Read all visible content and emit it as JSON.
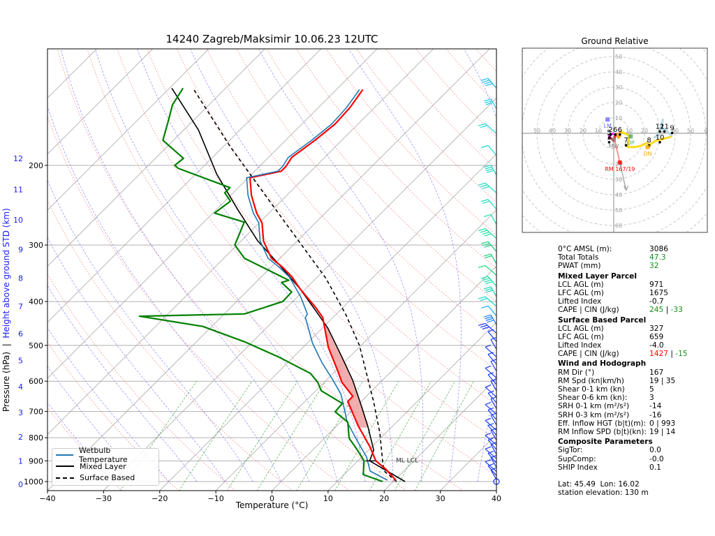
{
  "title": "14240 Zagreb/Maksimir 10.06.23 12UTC",
  "chart_data": [
    {
      "type": "line",
      "subtype": "skew-T log-P",
      "title": "14240 Zagreb/Maksimir 10.06.23 12UTC",
      "xlabel": "Temperature (°C)",
      "ylabel_left": "Pressure (hPa)",
      "ylabel_separator": "|",
      "ylabel_right": "Height above ground STD (km)",
      "xlim": [
        -40,
        40
      ],
      "ylim_hpa": [
        1050,
        110
      ],
      "x_ticks": [
        "−40",
        "−30",
        "−20",
        "−10",
        "0",
        "10",
        "20",
        "30",
        "40"
      ],
      "x_tick_values": [
        -40,
        -30,
        -20,
        -10,
        0,
        10,
        20,
        30,
        40
      ],
      "pressure_ticks": [
        "200",
        "300",
        "400",
        "500",
        "600",
        "700",
        "800",
        "900",
        "1000"
      ],
      "pressure_tick_values": [
        200,
        300,
        400,
        500,
        600,
        700,
        800,
        900,
        1000
      ],
      "height_ticks": [
        "0",
        "1",
        "2",
        "3",
        "4",
        "5",
        "6",
        "7",
        "8",
        "9",
        "10",
        "11",
        "12"
      ],
      "height_tick_pressures": [
        1015,
        900,
        797,
        703,
        617,
        540,
        471,
        410,
        355,
        307,
        264,
        226,
        193
      ],
      "grid": true,
      "legend": {
        "placement": "lower-left",
        "entries": [
          {
            "label": "Wetbulb Temperature",
            "color": "#1f77b4",
            "style": "solid"
          },
          {
            "label": "Mixed Layer",
            "color": "#000000",
            "style": "solid"
          },
          {
            "label": "Surface Based",
            "color": "#000000",
            "style": "dashed"
          }
        ]
      },
      "annotations": [
        {
          "text": "ML LCL",
          "p": 900,
          "t": 23
        }
      ],
      "series": [
        {
          "name": "Temperature",
          "color": "#ff0000",
          "points": [
            [
              20.2,
              993
            ],
            [
              16.4,
              938
            ],
            [
              13.2,
              900
            ],
            [
              9.6,
              837
            ],
            [
              3.8,
              753
            ],
            [
              -2.4,
              665
            ],
            [
              -2.4,
              648
            ],
            [
              -6.8,
              604
            ],
            [
              -9.9,
              566
            ],
            [
              -15.5,
              505
            ],
            [
              -21.8,
              434
            ],
            [
              -24.9,
              412
            ],
            [
              -30.8,
              376
            ],
            [
              -34.5,
              353
            ],
            [
              -37.9,
              336
            ],
            [
              -41.5,
              321
            ],
            [
              -46.0,
              294
            ],
            [
              -49.5,
              268
            ],
            [
              -52.2,
              255
            ],
            [
              -56.3,
              233
            ],
            [
              -59.7,
              213
            ],
            [
              -55.3,
              206
            ],
            [
              -55.3,
              201
            ],
            [
              -55.9,
              192
            ],
            [
              -54.8,
              176
            ],
            [
              -54.1,
              162
            ],
            [
              -54.4,
              149
            ],
            [
              -55.3,
              136
            ]
          ]
        },
        {
          "name": "Dewpoint",
          "color": "#008000",
          "points": [
            [
              18.1,
              1000
            ],
            [
              13.4,
              965
            ],
            [
              11.1,
              900
            ],
            [
              8.0,
              852
            ],
            [
              4.4,
              802
            ],
            [
              1.3,
              739
            ],
            [
              -2.8,
              701
            ],
            [
              -3.0,
              672
            ],
            [
              -9.0,
              630
            ],
            [
              -11.1,
              604
            ],
            [
              -14.0,
              577
            ],
            [
              -22.5,
              531
            ],
            [
              -31.4,
              491
            ],
            [
              -41.6,
              454
            ],
            [
              -54.7,
              431
            ],
            [
              -36.4,
              426
            ],
            [
              -31.8,
              400
            ],
            [
              -31.9,
              381
            ],
            [
              -35.4,
              363
            ],
            [
              -34.5,
              359
            ],
            [
              -46.3,
              321
            ],
            [
              -50.4,
              300
            ],
            [
              -52.8,
              267
            ],
            [
              -59.7,
              255
            ],
            [
              -59.0,
              240
            ],
            [
              -61.5,
              230
            ],
            [
              -61.5,
              224
            ],
            [
              -74.2,
              203
            ],
            [
              -75.3,
              200
            ],
            [
              -75.0,
              193
            ],
            [
              -81.9,
              176
            ],
            [
              -84.3,
              160
            ],
            [
              -86.5,
              147
            ],
            [
              -87.6,
              135
            ]
          ]
        },
        {
          "name": "Wetbulb Temperature",
          "color": "#1f77b4",
          "points": [
            [
              18.7,
              993
            ],
            [
              14.0,
              948
            ],
            [
              10.9,
              883
            ],
            [
              6.4,
              814
            ],
            [
              1.2,
              739
            ],
            [
              -1.8,
              689
            ],
            [
              -4.9,
              641
            ],
            [
              -8.8,
              597
            ],
            [
              -13.8,
              547
            ],
            [
              -19.0,
              495
            ],
            [
              -24.9,
              434
            ],
            [
              -25.2,
              426
            ],
            [
              -29.5,
              390
            ],
            [
              -35.0,
              353
            ],
            [
              -38.5,
              336
            ],
            [
              -42.1,
              321
            ],
            [
              -46.6,
              294
            ],
            [
              -50.1,
              268
            ],
            [
              -52.8,
              255
            ],
            [
              -56.9,
              233
            ],
            [
              -60.3,
              213
            ],
            [
              -55.9,
              206
            ],
            [
              -55.9,
              201
            ],
            [
              -56.5,
              192
            ],
            [
              -55.4,
              176
            ],
            [
              -54.7,
              162
            ],
            [
              -55.0,
              149
            ],
            [
              -55.9,
              136
            ]
          ]
        },
        {
          "name": "Mixed Layer",
          "color": "#000000",
          "style": "solid",
          "points": [
            [
              22.1,
              1000
            ],
            [
              12.1,
              900
            ],
            [
              10.9,
              852
            ],
            [
              5.5,
              753
            ],
            [
              0.6,
              677
            ],
            [
              -5.3,
              597
            ],
            [
              -11.5,
              529
            ],
            [
              -19.0,
              458
            ],
            [
              -24.3,
              419
            ],
            [
              -30.8,
              376
            ],
            [
              -38.9,
              332
            ],
            [
              -47.0,
              294
            ],
            [
              -56.3,
              250
            ],
            [
              -66.3,
              209
            ],
            [
              -77.4,
              167
            ],
            [
              -89.6,
              135
            ]
          ]
        },
        {
          "name": "Surface Based",
          "color": "#000000",
          "style": "dashed",
          "points": [
            [
              20.6,
              1000
            ],
            [
              16.5,
              948
            ],
            [
              14.4,
              900
            ],
            [
              8.9,
              780
            ],
            [
              2.2,
              665
            ],
            [
              -10.3,
              500
            ],
            [
              -18.4,
              426
            ],
            [
              -28.3,
              355
            ],
            [
              -38.9,
              298
            ],
            [
              -53.8,
              233
            ],
            [
              -68.7,
              182
            ],
            [
              -85.4,
              136
            ]
          ]
        }
      ],
      "wind_barbs": {
        "surface_calm_pressure": 1000,
        "levels_hpa": [
          990,
          970,
          950,
          930,
          910,
          890,
          870,
          850,
          830,
          810,
          790,
          770,
          750,
          730,
          710,
          690,
          670,
          650,
          630,
          610,
          590,
          570,
          550,
          530,
          510,
          490,
          470,
          450,
          430,
          410,
          390,
          370,
          350,
          330,
          310,
          290,
          270,
          250,
          230,
          210,
          190,
          170,
          150,
          135
        ],
        "colors": [
          "#1a3cff",
          "#1a3cff",
          "#1a3cff",
          "#1a3cff",
          "#1a3cff",
          "#1a3cff",
          "#1a3cff",
          "#1a3cff",
          "#1a3cff",
          "#1a3cff",
          "#1a3cff",
          "#1a3cff",
          "#1a3cff",
          "#1a3cff",
          "#1a3cff",
          "#1a3cff",
          "#1a3cff",
          "#1a3cff",
          "#1a3cff",
          "#1a3cff",
          "#1a3cff",
          "#1a3cff",
          "#1a3cff",
          "#1a3cff",
          "#1a3cff",
          "#1a3cff",
          "#1a3cff",
          "#1a80ff",
          "#12b4ff",
          "#12d4cc",
          "#12d4b8",
          "#12e0a8",
          "#12d878",
          "#12d078",
          "#18d080",
          "#1ae0a0",
          "#1ae0b0",
          "#1ae0c0",
          "#1ad8c0",
          "#1ad8c8",
          "#1ad8d8",
          "#1ad8e0",
          "#1ad0e8",
          "#1ab8f0"
        ]
      }
    },
    {
      "type": "line",
      "subtype": "hodograph",
      "title": "Ground Relative",
      "ring_labels": [
        "10",
        "20",
        "30",
        "40",
        "50",
        "60"
      ],
      "axis_labels_left": [
        "50",
        "40",
        "30",
        "20",
        "10"
      ],
      "axis_labels_right": [
        "10",
        "20",
        "30",
        "40",
        "50",
        "6"
      ],
      "axis_labels_top": [
        "50",
        "40",
        "30",
        "20",
        "10"
      ],
      "axis_labels_bottom": [
        "20",
        "30",
        "40",
        "50",
        "60"
      ],
      "markers": [
        {
          "label": "LM",
          "u": -4,
          "v": 9,
          "color": "#6b6bff"
        },
        {
          "label": "RM 167/19",
          "u": 4,
          "v": -19,
          "color": "#ff0000"
        },
        {
          "label": "MW",
          "u": 0,
          "v": -4,
          "color": "#888888"
        },
        {
          "label": "UP",
          "u": 11,
          "v": -2,
          "color": "#55aa55"
        },
        {
          "label": "DN",
          "u": 22,
          "v": -9,
          "color": "#ffa500"
        }
      ],
      "height_labels": [
        {
          "label": "2",
          "u": -2,
          "v": 1
        },
        {
          "label": "6",
          "u": 1,
          "v": 1
        },
        {
          "label": "6",
          "u": 4,
          "v": 1
        },
        {
          "label": "5",
          "u": -3,
          "v": -1
        },
        {
          "label": "3",
          "u": -3,
          "v": -4
        },
        {
          "label": "7",
          "u": 8,
          "v": -6
        },
        {
          "label": "8",
          "u": 23,
          "v": -6
        },
        {
          "label": "10",
          "u": 30,
          "v": -4
        },
        {
          "label": "12",
          "u": 30,
          "v": 3
        },
        {
          "label": "11",
          "u": 33,
          "v": 3
        },
        {
          "label": "9",
          "u": 38,
          "v": 2
        }
      ],
      "segments": [
        {
          "name": "0-1 km",
          "color": "#ff00ff",
          "points": [
            [
              0,
              0
            ],
            [
              -2,
              -1
            ],
            [
              -3,
              -2
            ],
            [
              -2,
              -3
            ]
          ]
        },
        {
          "name": "1-3 km",
          "color": "#ff0000",
          "points": [
            [
              -2,
              -3
            ],
            [
              -1,
              -4
            ],
            [
              0,
              -5
            ],
            [
              1,
              -2
            ],
            [
              2,
              0
            ]
          ]
        },
        {
          "name": "3-6 km",
          "color": "#ffa000",
          "points": [
            [
              2,
              0
            ],
            [
              3,
              -3
            ],
            [
              4,
              -2
            ],
            [
              4,
              1
            ],
            [
              5,
              1
            ]
          ]
        },
        {
          "name": "6-9 km",
          "color": "#ffd700",
          "points": [
            [
              5,
              1
            ],
            [
              9,
              -1
            ],
            [
              10,
              -2
            ],
            [
              9,
              -9
            ],
            [
              14,
              -9
            ],
            [
              18,
              -8
            ],
            [
              22,
              -6
            ],
            [
              23,
              -9
            ],
            [
              24,
              -7
            ],
            [
              27,
              -5
            ],
            [
              31,
              -4
            ],
            [
              38,
              -2
            ]
          ]
        },
        {
          "name": "9-12 km",
          "color": "#add8e6",
          "points": [
            [
              38,
              -2
            ],
            [
              33,
              3
            ],
            [
              31,
              3
            ],
            [
              32,
              9
            ],
            [
              29,
              -1
            ],
            [
              26,
              -3
            ]
          ]
        }
      ],
      "storm_motion_arrow": {
        "u": 8,
        "v": -37,
        "color": "#999999"
      },
      "rm_vector": {
        "color": "#ff6666",
        "u": 4,
        "v": -19
      }
    }
  ],
  "stats": {
    "rows_top": [
      {
        "label": "0°C AMSL (m):",
        "value": "3086",
        "color": "default"
      },
      {
        "label": "Total Totals",
        "value": "47.3",
        "color": "green"
      },
      {
        "label": "PWAT (mm)",
        "value": "32",
        "color": "green"
      }
    ],
    "mixed_layer": {
      "header": "Mixed Layer Parcel",
      "lcl_label": "LCL AGL (m)",
      "lcl": "971",
      "lfc_label": "LFC AGL (m)",
      "lfc": "1675",
      "li_label": "Lifted Index",
      "li": "-0.7",
      "cape_label": "CAPE | CIN (J/kg)",
      "cape": "245",
      "sep": " | ",
      "cin": "-33"
    },
    "surface_based": {
      "header": "Surface Based Parcel",
      "lcl_label": "LCL AGL (m)",
      "lcl": "327",
      "lfc_label": "LFC AGL (m)",
      "lfc": "659",
      "li_label": "Lifted Index",
      "li": "-4.0",
      "cape_label": "CAPE | CIN (J/kg)",
      "cape": "1427",
      "sep": " | ",
      "cin": "-15"
    },
    "wind": {
      "header": "Wind and Hodograph",
      "rows": [
        {
          "label": "RM Dir (°)",
          "value": "167"
        },
        {
          "label": "RM Spd (kn|km/h)",
          "value": "19 | 35"
        },
        {
          "label": "Shear 0-1 km (kn)",
          "value": "5"
        },
        {
          "label": "Shear 0-6 km (kn):",
          "value": "3"
        },
        {
          "label": "SRH 0-1 km (m²/s²)",
          "value": "-14"
        },
        {
          "label": "SRH 0-3 km (m²/s²)",
          "value": "-16"
        },
        {
          "label": "Eff. Inflow HGT (b|t)(m):",
          "value": "0 | 993"
        },
        {
          "label": "RM Inflow SPD (b|t)(kn):",
          "value": "19 | 14"
        }
      ]
    },
    "composite": {
      "header": "Composite Parameters",
      "rows": [
        {
          "label": "SigTor:",
          "value": "0.0"
        },
        {
          "label": "SupComp:",
          "value": "-0.0"
        },
        {
          "label": "SHIP Index",
          "value": "0.1"
        }
      ]
    },
    "footer": {
      "latlon": "Lat: 45.49  Lon: 16.02",
      "elevation": "station elevation: 130 m"
    }
  },
  "colors": {
    "temperature": "#ff0000",
    "dewpoint": "#008000",
    "wetbulb": "#1f77b4",
    "cape_fill": "#f0a0a0",
    "green_value": "#1a8c1a",
    "red_value": "#ff0000",
    "height_axis": "#1a1aff"
  }
}
